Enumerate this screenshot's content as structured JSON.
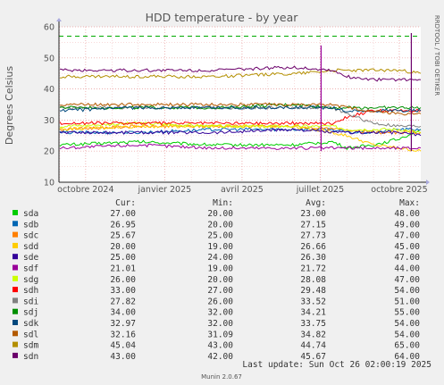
{
  "chart_data": {
    "type": "line",
    "title": "HDD temperature - by year",
    "ylabel": "Degrees Celsius",
    "ylim": [
      10,
      60
    ],
    "yticks": [
      10,
      20,
      30,
      40,
      50,
      60
    ],
    "xlim": [
      "2024-08-31",
      "2025-10-26"
    ],
    "xticks": [
      {
        "date": "2024-10-01",
        "label": "octobre 2024"
      },
      {
        "date": "2025-01-01",
        "label": "janvier 2025"
      },
      {
        "date": "2025-04-01",
        "label": "avril 2025"
      },
      {
        "date": "2025-07-01",
        "label": "juillet 2025"
      },
      {
        "date": "2025-10-01",
        "label": "octobre 2025"
      }
    ],
    "grid": true,
    "warning_line": 57,
    "columns": [
      "Cur:",
      "Min:",
      "Avg:",
      "Max:"
    ],
    "series": [
      {
        "name": "sda",
        "color": "#00cc00",
        "cur": "27.00",
        "min": "20.00",
        "avg": "23.00",
        "max": "48.00",
        "points": [
          [
            "2024-09-01",
            22
          ],
          [
            "2024-12-01",
            23
          ],
          [
            "2025-03-01",
            22
          ],
          [
            "2025-06-01",
            22
          ],
          [
            "2025-07-15",
            23
          ],
          [
            "2025-08-01",
            21
          ],
          [
            "2025-09-01",
            22
          ],
          [
            "2025-10-01",
            24
          ],
          [
            "2025-10-26",
            27
          ]
        ]
      },
      {
        "name": "sdb",
        "color": "#0066b3",
        "cur": "26.95",
        "min": "20.00",
        "avg": "27.15",
        "max": "49.00",
        "points": [
          [
            "2024-09-01",
            26
          ],
          [
            "2024-12-01",
            26
          ],
          [
            "2025-03-01",
            27
          ],
          [
            "2025-06-01",
            27
          ],
          [
            "2025-07-15",
            27
          ],
          [
            "2025-08-01",
            26
          ],
          [
            "2025-09-01",
            26
          ],
          [
            "2025-10-01",
            27
          ],
          [
            "2025-10-26",
            27
          ]
        ]
      },
      {
        "name": "sdc",
        "color": "#ff8000",
        "cur": "25.67",
        "min": "25.00",
        "avg": "27.73",
        "max": "47.00",
        "points": [
          [
            "2024-09-01",
            27
          ],
          [
            "2024-12-01",
            28
          ],
          [
            "2025-03-01",
            28
          ],
          [
            "2025-06-01",
            28
          ],
          [
            "2025-07-15",
            27
          ],
          [
            "2025-08-01",
            27
          ],
          [
            "2025-09-01",
            26
          ],
          [
            "2025-10-01",
            26
          ],
          [
            "2025-10-26",
            26
          ]
        ]
      },
      {
        "name": "sdd",
        "color": "#ffcc00",
        "cur": "20.00",
        "min": "19.00",
        "avg": "26.66",
        "max": "45.00",
        "points": [
          [
            "2024-09-01",
            27
          ],
          [
            "2024-12-01",
            28
          ],
          [
            "2025-03-01",
            28
          ],
          [
            "2025-06-01",
            28
          ],
          [
            "2025-07-15",
            26
          ],
          [
            "2025-08-01",
            25
          ],
          [
            "2025-09-01",
            22
          ],
          [
            "2025-10-01",
            21
          ],
          [
            "2025-10-26",
            20
          ]
        ]
      },
      {
        "name": "sde",
        "color": "#330099",
        "cur": "25.00",
        "min": "24.00",
        "avg": "26.30",
        "max": "47.00",
        "points": [
          [
            "2024-09-01",
            26
          ],
          [
            "2024-12-01",
            26
          ],
          [
            "2025-03-01",
            26
          ],
          [
            "2025-06-01",
            27
          ],
          [
            "2025-07-15",
            26
          ],
          [
            "2025-08-01",
            26
          ],
          [
            "2025-09-01",
            26
          ],
          [
            "2025-10-01",
            26
          ],
          [
            "2025-10-26",
            25
          ]
        ]
      },
      {
        "name": "sdf",
        "color": "#990099",
        "cur": "21.01",
        "min": "19.00",
        "avg": "21.72",
        "max": "44.00",
        "points": [
          [
            "2024-09-01",
            21
          ],
          [
            "2024-12-01",
            22
          ],
          [
            "2025-03-01",
            21
          ],
          [
            "2025-06-01",
            21
          ],
          [
            "2025-07-15",
            21
          ],
          [
            "2025-08-01",
            21
          ],
          [
            "2025-09-01",
            21
          ],
          [
            "2025-10-01",
            21
          ],
          [
            "2025-10-26",
            21
          ]
        ]
      },
      {
        "name": "sdg",
        "color": "#ccff00",
        "cur": "26.00",
        "min": "20.00",
        "avg": "28.08",
        "max": "47.00",
        "points": [
          [
            "2024-09-01",
            28
          ],
          [
            "2024-12-01",
            29
          ],
          [
            "2025-03-01",
            28
          ],
          [
            "2025-06-01",
            28
          ],
          [
            "2025-07-15",
            28
          ],
          [
            "2025-08-01",
            27
          ],
          [
            "2025-09-01",
            27
          ],
          [
            "2025-10-01",
            27
          ],
          [
            "2025-10-26",
            26
          ]
        ]
      },
      {
        "name": "sdh",
        "color": "#ff0000",
        "cur": "33.00",
        "min": "27.00",
        "avg": "29.48",
        "max": "54.00",
        "points": [
          [
            "2024-09-01",
            29
          ],
          [
            "2024-12-01",
            29
          ],
          [
            "2025-03-01",
            29
          ],
          [
            "2025-06-01",
            29
          ],
          [
            "2025-07-15",
            29
          ],
          [
            "2025-08-01",
            31
          ],
          [
            "2025-09-01",
            33
          ],
          [
            "2025-10-01",
            33
          ],
          [
            "2025-10-26",
            33
          ]
        ]
      },
      {
        "name": "sdi",
        "color": "#808080",
        "cur": "27.82",
        "min": "26.00",
        "avg": "33.52",
        "max": "51.00",
        "points": [
          [
            "2024-09-01",
            34
          ],
          [
            "2024-12-01",
            34
          ],
          [
            "2025-03-01",
            34
          ],
          [
            "2025-06-01",
            34
          ],
          [
            "2025-07-15",
            34
          ],
          [
            "2025-08-01",
            32
          ],
          [
            "2025-09-01",
            29
          ],
          [
            "2025-10-01",
            28
          ],
          [
            "2025-10-26",
            28
          ]
        ]
      },
      {
        "name": "sdj",
        "color": "#008f00",
        "cur": "34.00",
        "min": "32.00",
        "avg": "34.21",
        "max": "55.00",
        "points": [
          [
            "2024-09-01",
            34
          ],
          [
            "2024-12-01",
            34
          ],
          [
            "2025-03-01",
            34
          ],
          [
            "2025-06-01",
            35
          ],
          [
            "2025-07-15",
            34
          ],
          [
            "2025-08-01",
            34
          ],
          [
            "2025-09-01",
            34
          ],
          [
            "2025-10-01",
            34
          ],
          [
            "2025-10-26",
            34
          ]
        ]
      },
      {
        "name": "sdk",
        "color": "#00487d",
        "cur": "32.97",
        "min": "32.00",
        "avg": "33.75",
        "max": "54.00",
        "points": [
          [
            "2024-09-01",
            33
          ],
          [
            "2024-12-01",
            34
          ],
          [
            "2025-03-01",
            34
          ],
          [
            "2025-06-01",
            34
          ],
          [
            "2025-07-15",
            34
          ],
          [
            "2025-08-01",
            33
          ],
          [
            "2025-09-01",
            33
          ],
          [
            "2025-10-01",
            33
          ],
          [
            "2025-10-26",
            33
          ]
        ]
      },
      {
        "name": "sdl",
        "color": "#b35a00",
        "cur": "32.16",
        "min": "31.09",
        "avg": "34.82",
        "max": "54.00",
        "points": [
          [
            "2024-09-01",
            35
          ],
          [
            "2024-12-01",
            35
          ],
          [
            "2025-03-01",
            35
          ],
          [
            "2025-06-01",
            35
          ],
          [
            "2025-07-15",
            35
          ],
          [
            "2025-08-01",
            34
          ],
          [
            "2025-09-01",
            33
          ],
          [
            "2025-10-01",
            32
          ],
          [
            "2025-10-26",
            32
          ]
        ]
      },
      {
        "name": "sdm",
        "color": "#b38f00",
        "cur": "45.04",
        "min": "43.00",
        "avg": "44.74",
        "max": "65.00",
        "points": [
          [
            "2024-09-01",
            44
          ],
          [
            "2024-12-01",
            44
          ],
          [
            "2025-03-01",
            44
          ],
          [
            "2025-06-01",
            45
          ],
          [
            "2025-07-15",
            46
          ],
          [
            "2025-08-01",
            46
          ],
          [
            "2025-09-01",
            46
          ],
          [
            "2025-10-01",
            46
          ],
          [
            "2025-10-26",
            45
          ]
        ]
      },
      {
        "name": "sdn",
        "color": "#6b006b",
        "cur": "43.00",
        "min": "42.00",
        "avg": "45.67",
        "max": "64.00",
        "points": [
          [
            "2024-09-01",
            46
          ],
          [
            "2024-12-01",
            46
          ],
          [
            "2025-03-01",
            46
          ],
          [
            "2025-06-01",
            47
          ],
          [
            "2025-07-15",
            46
          ],
          [
            "2025-08-01",
            44
          ],
          [
            "2025-09-01",
            43
          ],
          [
            "2025-10-01",
            43
          ],
          [
            "2025-10-26",
            43
          ]
        ]
      }
    ],
    "spikes": [
      {
        "date": "2025-07-02",
        "to": 54
      },
      {
        "date": "2025-10-15",
        "to": 58
      }
    ]
  },
  "last_update": "Last update: Sun Oct 26 02:00:19 2025",
  "side_label": "RRDTOOL / TOBI OETIKER",
  "footer": "Munin 2.0.67"
}
